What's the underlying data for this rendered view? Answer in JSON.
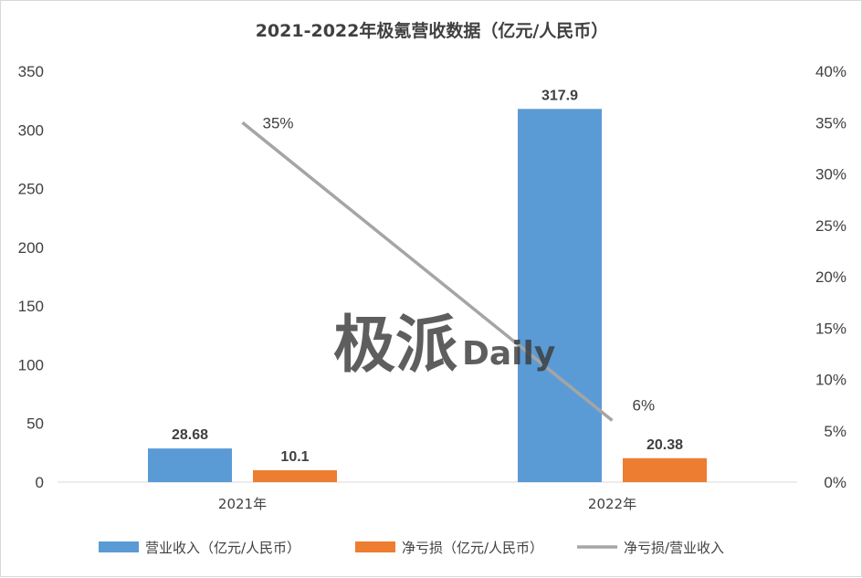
{
  "chart_data": {
    "type": "bar",
    "title": "2021-2022年极氪营收数据（亿元/人民币）",
    "categories": [
      "2021年",
      "2022年"
    ],
    "series": [
      {
        "name": "营业收入（亿元/人民币）",
        "values": [
          28.68,
          317.9
        ],
        "labels": [
          "28.68",
          "317.9"
        ],
        "color": "#5B9BD5",
        "axis": "left",
        "kind": "bar"
      },
      {
        "name": "净亏损（亿元/人民币）",
        "values": [
          10.1,
          20.38
        ],
        "labels": [
          "10.1",
          "20.38"
        ],
        "color": "#ED7D31",
        "axis": "left",
        "kind": "bar"
      },
      {
        "name": "净亏损/营业收入",
        "values": [
          35,
          6
        ],
        "labels": [
          "35%",
          "6%"
        ],
        "color": "#A5A5A5",
        "axis": "right",
        "kind": "line"
      }
    ],
    "y_left": {
      "min": 0,
      "max": 350,
      "ticks": [
        "0",
        "50",
        "100",
        "150",
        "200",
        "250",
        "300",
        "350"
      ]
    },
    "y_right": {
      "min": 0,
      "max": 40,
      "ticks": [
        "0%",
        "5%",
        "10%",
        "15%",
        "20%",
        "25%",
        "30%",
        "35%",
        "40%"
      ]
    },
    "grid": false,
    "legend_position": "bottom"
  },
  "watermark": {
    "cn": "极派",
    "en": "Daily"
  }
}
